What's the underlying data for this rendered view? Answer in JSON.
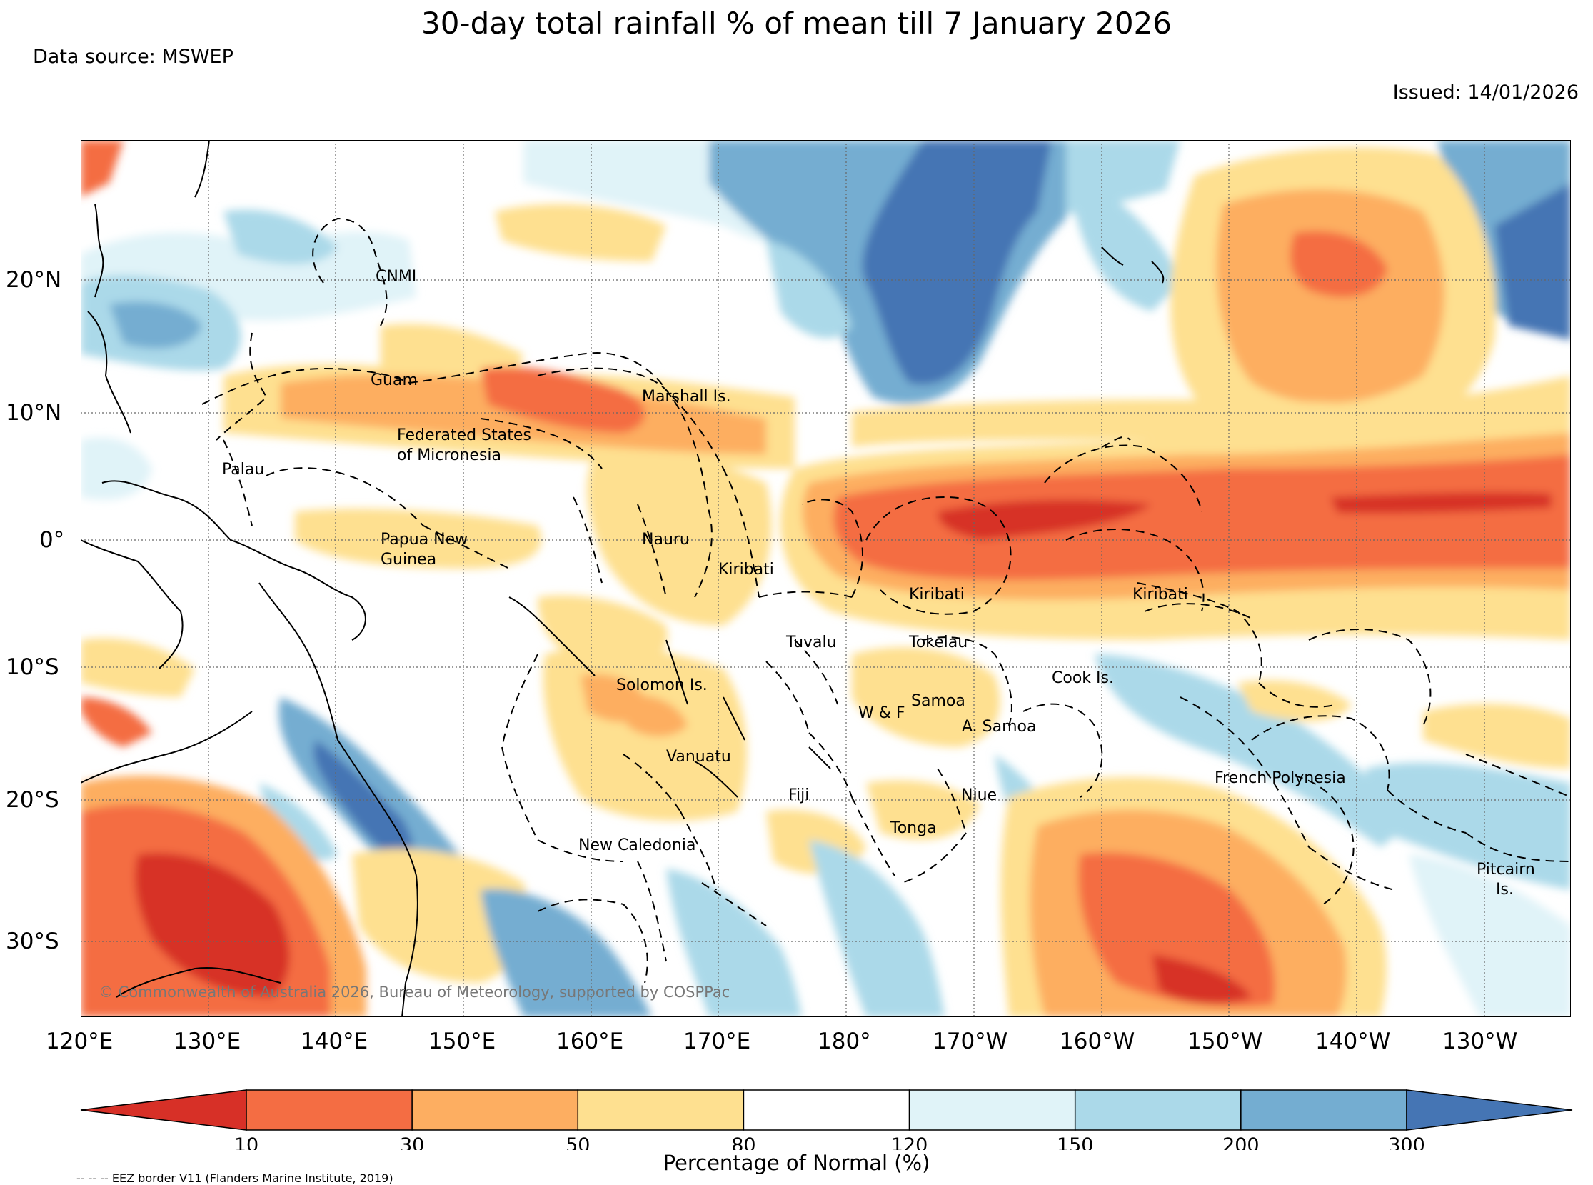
{
  "title": "30-day total rainfall % of mean till 7 January 2026",
  "data_source": "Data source: MSWEP",
  "issued": "Issued: 14/01/2026",
  "copyright": "© Commonwealth of Australia 2026, Bureau of Meteorology, supported by COSPPac",
  "eez_note": "-- -- -- EEZ border V11 (Flanders Marine Institute, 2019)",
  "colorbar": {
    "label": "Percentage of Normal (%)",
    "ticks": [
      "10",
      "30",
      "50",
      "80",
      "120",
      "150",
      "200",
      "300"
    ],
    "colors": [
      "#d73027",
      "#f46d43",
      "#fdae61",
      "#fee090",
      "#ffffff",
      "#e0f3f8",
      "#abd9e9",
      "#74add1",
      "#4575b4"
    ]
  },
  "longitude_labels": [
    "120°E",
    "130°E",
    "140°E",
    "150°E",
    "160°E",
    "170°E",
    "180°",
    "170°W",
    "160°W",
    "150°W",
    "140°W",
    "130°W"
  ],
  "latitude_labels": [
    "20°N",
    "10°N",
    "0°",
    "10°S",
    "20°S",
    "30°S"
  ],
  "regions": [
    {
      "name": "CNMI",
      "lines": [
        "CNMI"
      ]
    },
    {
      "name": "Guam",
      "lines": [
        "Guam"
      ]
    },
    {
      "name": "Marshall Is.",
      "lines": [
        "Marshall Is."
      ]
    },
    {
      "name": "Federated States of Micronesia",
      "lines": [
        "Federated States",
        "of Micronesia"
      ]
    },
    {
      "name": "Palau",
      "lines": [
        "Palau"
      ]
    },
    {
      "name": "Papua New Guinea",
      "lines": [
        "Papua New",
        "Guinea"
      ]
    },
    {
      "name": "Nauru",
      "lines": [
        "Nauru"
      ]
    },
    {
      "name": "Kiribati (Gilbert)",
      "lines": [
        "Kiribati"
      ]
    },
    {
      "name": "Kiribati (Phoenix)",
      "lines": [
        "Kiribati"
      ]
    },
    {
      "name": "Kiribati (Line)",
      "lines": [
        "Kiribati"
      ]
    },
    {
      "name": "Tuvalu",
      "lines": [
        "Tuvalu"
      ]
    },
    {
      "name": "Tokelau",
      "lines": [
        "Tokelau"
      ]
    },
    {
      "name": "Solomon Is.",
      "lines": [
        "Solomon Is."
      ]
    },
    {
      "name": "Cook Is.",
      "lines": [
        "Cook Is."
      ]
    },
    {
      "name": "W & F",
      "lines": [
        "W & F"
      ]
    },
    {
      "name": "Samoa",
      "lines": [
        "Samoa"
      ]
    },
    {
      "name": "A. Samoa",
      "lines": [
        "A. Samoa"
      ]
    },
    {
      "name": "Vanuatu",
      "lines": [
        "Vanuatu"
      ]
    },
    {
      "name": "Fiji",
      "lines": [
        "Fiji"
      ]
    },
    {
      "name": "Niue",
      "lines": [
        "Niue"
      ]
    },
    {
      "name": "French Polynesia",
      "lines": [
        "French Polynesia"
      ]
    },
    {
      "name": "Tonga",
      "lines": [
        "Tonga"
      ]
    },
    {
      "name": "New Caledonia",
      "lines": [
        "New Caledonia"
      ]
    },
    {
      "name": "Pitcairn Is.",
      "lines": [
        "Pitcairn",
        "Is."
      ]
    }
  ]
}
